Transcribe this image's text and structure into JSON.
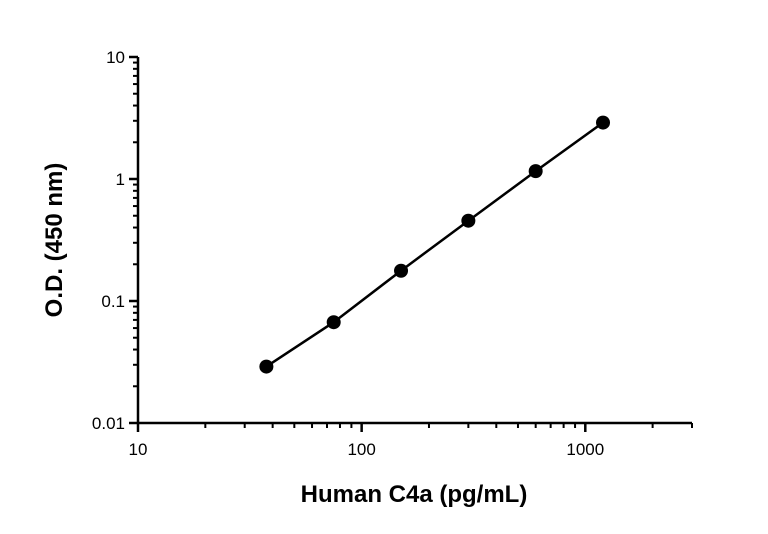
{
  "chart_data": {
    "type": "scatter",
    "xlabel": "Human C4a (pg/mL)",
    "ylabel": "O.D. (450 nm)",
    "x_scale": "log",
    "y_scale": "log",
    "xlim": [
      10,
      3000
    ],
    "ylim": [
      0.01,
      10
    ],
    "x_ticks": [
      {
        "value": 10,
        "label": "10"
      },
      {
        "value": 100,
        "label": "100"
      },
      {
        "value": 1000,
        "label": "1000"
      }
    ],
    "y_ticks": [
      {
        "value": 0.01,
        "label": "0.01"
      },
      {
        "value": 0.1,
        "label": "0.1"
      },
      {
        "value": 1,
        "label": "1"
      },
      {
        "value": 10,
        "label": "10"
      }
    ],
    "grid": false,
    "series": [
      {
        "x": [
          37.5,
          75,
          150,
          300,
          600,
          1200
        ],
        "y": [
          0.029,
          0.067,
          0.177,
          0.455,
          1.16,
          2.9
        ],
        "color": "#000000",
        "marker": "circle",
        "line": true
      }
    ]
  }
}
